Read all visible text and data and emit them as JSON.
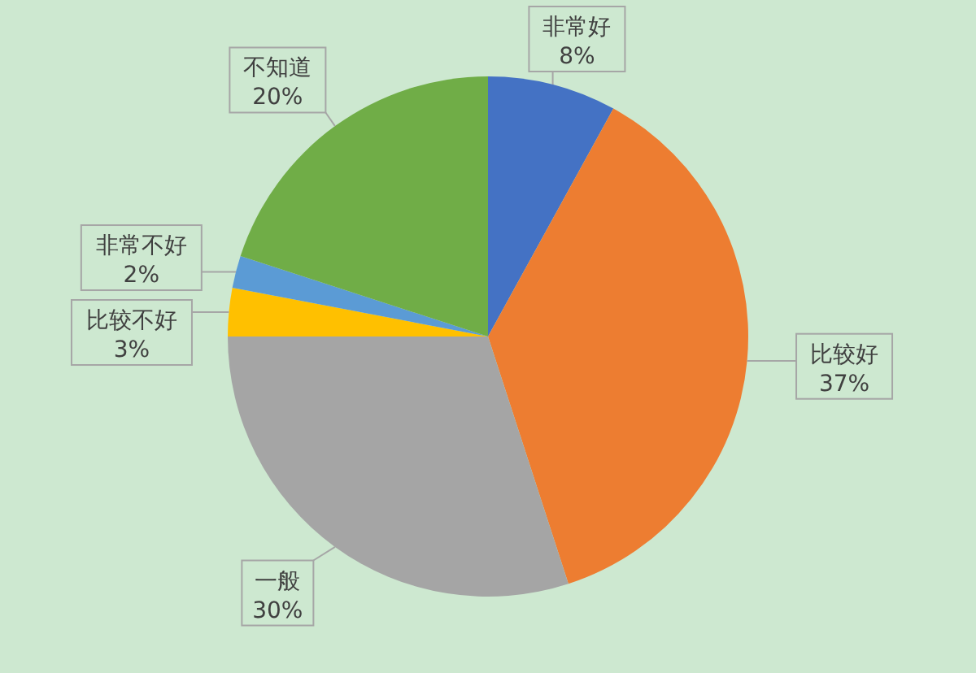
{
  "chart_data": {
    "type": "pie",
    "categories": [
      "非常好",
      "比较好",
      "一般",
      "比较不好",
      "非常不好",
      "不知道"
    ],
    "values": [
      8,
      37,
      30,
      3,
      2,
      20
    ],
    "colors": [
      "#4472c4",
      "#ed7d31",
      "#a5a5a5",
      "#ffc000",
      "#5b9bd5",
      "#70ad47"
    ],
    "value_labels": [
      "8%",
      "37%",
      "30%",
      "3%",
      "2%",
      "20%"
    ]
  }
}
